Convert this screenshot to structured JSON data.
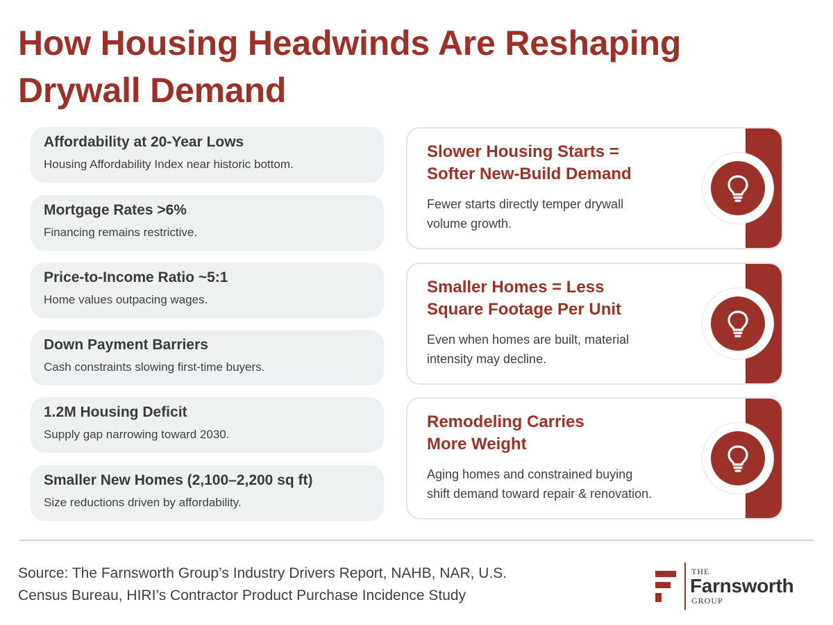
{
  "page": {
    "title": "How Housing Headwinds Are Reshaping Drywall Demand"
  },
  "drivers": [
    {
      "title": "Affordability at 20-Year Lows",
      "description": "Housing Affordability Index near historic bottom."
    },
    {
      "title": "Mortgage Rates >6%",
      "description": "Financing remains restrictive."
    },
    {
      "title": "Price-to-Income Ratio ~5:1",
      "description": "Home values outpacing wages."
    },
    {
      "title": "Down Payment Barriers",
      "description": "Cash constraints slowing first-time buyers."
    },
    {
      "title": "1.2M Housing Deficit",
      "description": "Supply gap narrowing toward 2030."
    },
    {
      "title": "Smaller New Homes (2,100–2,200 sq ft)",
      "description": "Size reductions driven by affordability."
    }
  ],
  "impacts": [
    {
      "title_line1": "Slower Housing Starts =",
      "title_line2": "Softer New-Build Demand",
      "desc_line1": "Fewer starts directly temper drywall",
      "desc_line2": "volume growth.",
      "icon": "lightbulb-icon"
    },
    {
      "title_line1": "Smaller Homes = Less",
      "title_line2": "Square Footage Per Unit",
      "desc_line1": "Even when homes are built, material",
      "desc_line2": "intensity may decline.",
      "icon": "lightbulb-icon"
    },
    {
      "title_line1": "Remodeling Carries",
      "title_line2": "More Weight",
      "desc_line1": "Aging homes and constrained buying",
      "desc_line2": "shift demand toward repair & renovation.",
      "icon": "lightbulb-icon"
    }
  ],
  "footer": {
    "source_line1": "Source: The Farnsworth Group’s Industry Drivers Report, NAHB, NAR, U.S.",
    "source_line2": "Census Bureau, HIRI’s Contractor Product Purchase Incidence Study",
    "logo_the": "THE",
    "logo_name": "Farnsworth",
    "logo_group": "GROUP"
  },
  "colors": {
    "accent": "#9b3129",
    "card_bg": "#eef1f2",
    "text": "#3f3f3f"
  }
}
